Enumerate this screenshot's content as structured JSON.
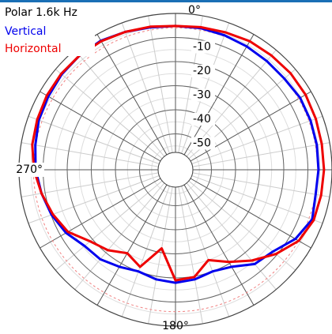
{
  "chart_data": {
    "type": "polar",
    "title": "Polar 1.6k Hz",
    "theta": [
      0,
      10,
      20,
      30,
      40,
      50,
      60,
      70,
      80,
      90,
      100,
      110,
      120,
      130,
      140,
      150,
      160,
      170,
      180,
      190,
      200,
      210,
      220,
      230,
      240,
      250,
      260,
      270,
      280,
      290,
      300,
      310,
      320,
      330,
      340,
      350
    ],
    "series": [
      {
        "name": "Vertical",
        "color": "#0000ee",
        "values": [
          -5.2,
          -5.2,
          -5.5,
          -5.8,
          -6.0,
          -6.0,
          -5.2,
          -5.3,
          -5.4,
          -5.6,
          -5.9,
          -4.6,
          -7.5,
          -12.1,
          -13.8,
          -18.4,
          -20.0,
          -18.7,
          -18.0,
          -18.7,
          -20.0,
          -18.4,
          -16.4,
          -15.7,
          -12.5,
          -10.2,
          -8.5,
          -6.9,
          -5.9,
          -4.6,
          -4.0,
          -3.3,
          -3.0,
          -3.0,
          -4.0,
          -4.9
        ]
      },
      {
        "name": "Horizontal",
        "color": "#ee0000",
        "values": [
          -5.2,
          -4.8,
          -4.2,
          -3.3,
          -3.0,
          -2.6,
          -2.6,
          -3.0,
          -3.3,
          -3.3,
          -3.6,
          -3.9,
          -5.9,
          -10.5,
          -15.7,
          -20.7,
          -25.0,
          -19.7,
          -19.0,
          -31.8,
          -22.0,
          -24.9,
          -21.3,
          -18.7,
          -13.4,
          -10.8,
          -8.5,
          -6.2,
          -4.6,
          -3.9,
          -3.3,
          -3.0,
          -3.0,
          -3.3,
          -4.0,
          -4.6
        ]
      }
    ],
    "rlim": [
      -60,
      0
    ],
    "rticks": [
      -10,
      -20,
      -30,
      -40,
      -50
    ],
    "thetaticks": [
      {
        "value": 0,
        "label": "0°"
      },
      {
        "value": 270,
        "label": "270°"
      },
      {
        "value": 180,
        "label": "180°"
      }
    ],
    "reference_ring": -6,
    "reference_color": "#f08080",
    "direction": "clockwise"
  }
}
